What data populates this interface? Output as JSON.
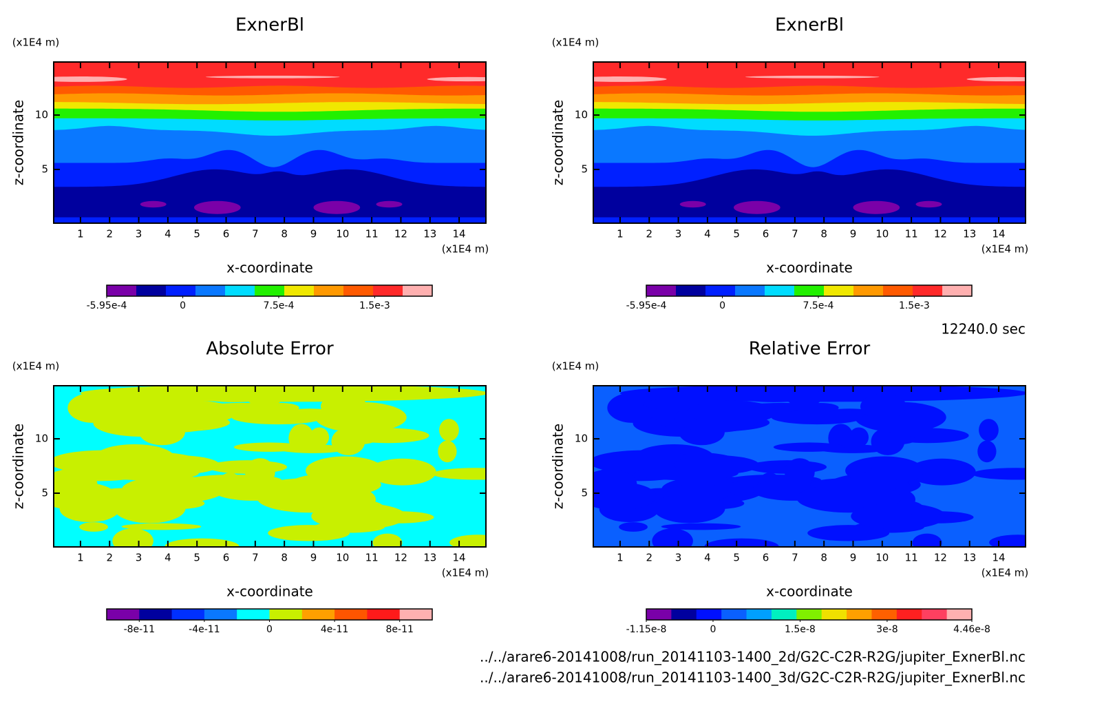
{
  "chart_data": [
    {
      "type": "contour",
      "title": "ExnerBl",
      "xlabel": "x-coordinate",
      "ylabel": "z-coordinate",
      "xunit": "(x1E4 m)",
      "yunit": "(x1E4 m)",
      "xlim": [
        0.08,
        14.92
      ],
      "xticks": [
        1,
        2,
        3,
        4,
        5,
        6,
        7,
        8,
        9,
        10,
        11,
        12,
        13,
        14
      ],
      "ylim": [
        0.06,
        14.88
      ],
      "yticks": [
        5,
        10
      ],
      "colorbar": {
        "lim": [
          -0.000595,
          0.00195
        ],
        "ticks": [
          {
            "value": -0.000595,
            "label": "-5.95e-4"
          },
          0,
          {
            "value": 0.00075,
            "label": "7.5e-4"
          },
          {
            "value": 0.0015,
            "label": "1.5e-3"
          }
        ],
        "colors": [
          "#7a00a8",
          "#00009e",
          "#0020ff",
          "#0a78ff",
          "#00dcff",
          "#22f000",
          "#f0e800",
          "#ff9900",
          "#ff5a00",
          "#ff2a2a",
          "#ffb0b0"
        ]
      }
    },
    {
      "type": "contour",
      "title": "ExnerBl",
      "xlabel": "x-coordinate",
      "ylabel": "z-coordinate",
      "xunit": "(x1E4 m)",
      "yunit": "(x1E4 m)",
      "xlim": [
        0.08,
        14.92
      ],
      "xticks": [
        1,
        2,
        3,
        4,
        5,
        6,
        7,
        8,
        9,
        10,
        11,
        12,
        13,
        14
      ],
      "ylim": [
        0.06,
        14.88
      ],
      "yticks": [
        5,
        10
      ],
      "colorbar": {
        "lim": [
          -0.000595,
          0.00195
        ],
        "ticks": [
          {
            "value": -0.000595,
            "label": "-5.95e-4"
          },
          0,
          {
            "value": 0.00075,
            "label": "7.5e-4"
          },
          {
            "value": 0.0015,
            "label": "1.5e-3"
          }
        ],
        "colors": [
          "#7a00a8",
          "#00009e",
          "#0020ff",
          "#0a78ff",
          "#00dcff",
          "#22f000",
          "#f0e800",
          "#ff9900",
          "#ff5a00",
          "#ff2a2a",
          "#ffb0b0"
        ]
      }
    },
    {
      "type": "contour",
      "title": "Absolute Error",
      "xlabel": "x-coordinate",
      "ylabel": "z-coordinate",
      "xunit": "(x1E4 m)",
      "yunit": "(x1E4 m)",
      "xlim": [
        0.08,
        14.92
      ],
      "xticks": [
        1,
        2,
        3,
        4,
        5,
        6,
        7,
        8,
        9,
        10,
        11,
        12,
        13,
        14
      ],
      "ylim": [
        0.06,
        14.88
      ],
      "yticks": [
        5,
        10
      ],
      "colorbar": {
        "lim": [
          -1e-10,
          1e-10
        ],
        "ticks": [
          -8e-11,
          -4e-11,
          0,
          4e-11,
          8e-11
        ],
        "colors": [
          "#7a00a8",
          "#00009e",
          "#0030ff",
          "#0a78ff",
          "#00ffff",
          "#c8f000",
          "#ffa000",
          "#ff5500",
          "#ff1a1a",
          "#ffb0b0"
        ]
      }
    },
    {
      "type": "contour",
      "title": "Relative Error",
      "xlabel": "x-coordinate",
      "ylabel": "z-coordinate",
      "xunit": "(x1E4 m)",
      "yunit": "(x1E4 m)",
      "xlim": [
        0.08,
        14.92
      ],
      "xticks": [
        1,
        2,
        3,
        4,
        5,
        6,
        7,
        8,
        9,
        10,
        11,
        12,
        13,
        14
      ],
      "ylim": [
        0.06,
        14.88
      ],
      "yticks": [
        5,
        10
      ],
      "colorbar": {
        "lim": [
          -1.15e-08,
          4.46e-08
        ],
        "ticks": [
          -1.15e-08,
          0,
          1.5e-08,
          3e-08,
          4.46e-08
        ],
        "colors": [
          "#7a00a8",
          "#00009e",
          "#0010ff",
          "#0a60ff",
          "#00a0ff",
          "#00f0c0",
          "#80f000",
          "#f0e000",
          "#ffa000",
          "#ff6000",
          "#ff2020",
          "#ff4060",
          "#ffb0b0"
        ]
      }
    }
  ],
  "time_label": "12240.0 sec",
  "files": [
    "../../arare6-20141008/run_20141103-1400_2d/G2C-C2R-R2G/jupiter_ExnerBl.nc",
    "../../arare6-20141008/run_20141103-1400_3d/G2C-C2R-R2G/jupiter_ExnerBl.nc"
  ]
}
